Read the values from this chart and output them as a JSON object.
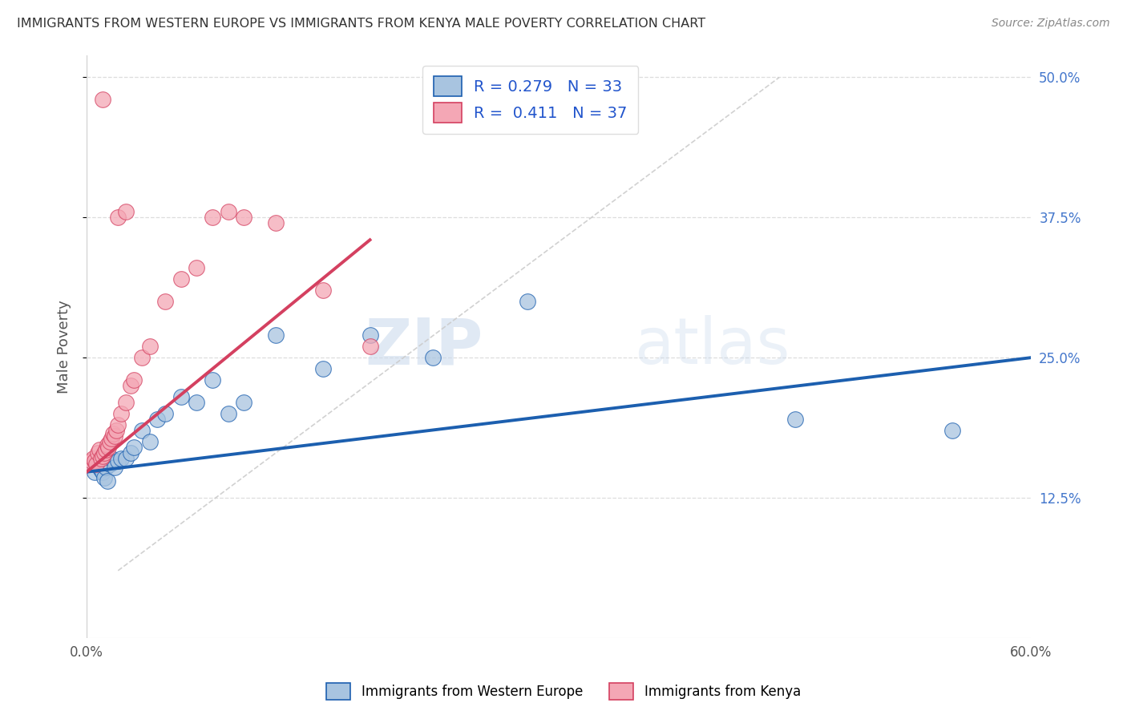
{
  "title": "IMMIGRANTS FROM WESTERN EUROPE VS IMMIGRANTS FROM KENYA MALE POVERTY CORRELATION CHART",
  "source": "Source: ZipAtlas.com",
  "ylabel": "Male Poverty",
  "legend_label1": "Immigrants from Western Europe",
  "legend_label2": "Immigrants from Kenya",
  "r1": 0.279,
  "n1": 33,
  "r2": 0.411,
  "n2": 37,
  "color1": "#A8C4E0",
  "color2": "#F4A7B5",
  "trendline1_color": "#1C5FAF",
  "trendline2_color": "#D44060",
  "xlim": [
    0.0,
    0.6
  ],
  "ylim": [
    0.0,
    0.52
  ],
  "xtick_positions": [
    0.0,
    0.1,
    0.2,
    0.3,
    0.4,
    0.5,
    0.6
  ],
  "xtick_labels": [
    "0.0%",
    "",
    "",
    "",
    "",
    "",
    "60.0%"
  ],
  "ytick_vals_right": [
    0.125,
    0.25,
    0.375,
    0.5
  ],
  "ytick_labels_right": [
    "12.5%",
    "25.0%",
    "37.5%",
    "50.0%"
  ],
  "watermark": "ZIPatlas",
  "blue_x": [
    0.003,
    0.005,
    0.007,
    0.008,
    0.009,
    0.01,
    0.011,
    0.012,
    0.013,
    0.015,
    0.016,
    0.018,
    0.02,
    0.022,
    0.025,
    0.028,
    0.03,
    0.035,
    0.04,
    0.045,
    0.05,
    0.06,
    0.07,
    0.08,
    0.09,
    0.1,
    0.12,
    0.15,
    0.18,
    0.22,
    0.28,
    0.45,
    0.55
  ],
  "blue_y": [
    0.155,
    0.148,
    0.155,
    0.152,
    0.15,
    0.148,
    0.143,
    0.152,
    0.14,
    0.155,
    0.16,
    0.152,
    0.158,
    0.16,
    0.16,
    0.165,
    0.17,
    0.185,
    0.175,
    0.195,
    0.2,
    0.215,
    0.21,
    0.23,
    0.2,
    0.21,
    0.27,
    0.24,
    0.27,
    0.25,
    0.3,
    0.195,
    0.185
  ],
  "pink_x": [
    0.002,
    0.003,
    0.004,
    0.005,
    0.006,
    0.007,
    0.008,
    0.009,
    0.01,
    0.011,
    0.012,
    0.013,
    0.014,
    0.015,
    0.016,
    0.017,
    0.018,
    0.019,
    0.02,
    0.022,
    0.025,
    0.028,
    0.03,
    0.035,
    0.04,
    0.05,
    0.06,
    0.07,
    0.08,
    0.09,
    0.02,
    0.025,
    0.1,
    0.12,
    0.15,
    0.18,
    0.01
  ],
  "pink_y": [
    0.155,
    0.158,
    0.16,
    0.158,
    0.155,
    0.165,
    0.168,
    0.16,
    0.162,
    0.165,
    0.168,
    0.172,
    0.17,
    0.175,
    0.178,
    0.182,
    0.18,
    0.185,
    0.19,
    0.2,
    0.21,
    0.225,
    0.23,
    0.25,
    0.26,
    0.3,
    0.32,
    0.33,
    0.375,
    0.38,
    0.375,
    0.38,
    0.375,
    0.37,
    0.31,
    0.26,
    0.48
  ],
  "background_color": "#ffffff",
  "grid_color": "#dddddd",
  "blue_trend_x0": 0.0,
  "blue_trend_y0": 0.148,
  "blue_trend_x1": 0.6,
  "blue_trend_y1": 0.25,
  "pink_trend_x0": 0.0,
  "pink_trend_y0": 0.148,
  "pink_trend_x1": 0.18,
  "pink_trend_y1": 0.355
}
